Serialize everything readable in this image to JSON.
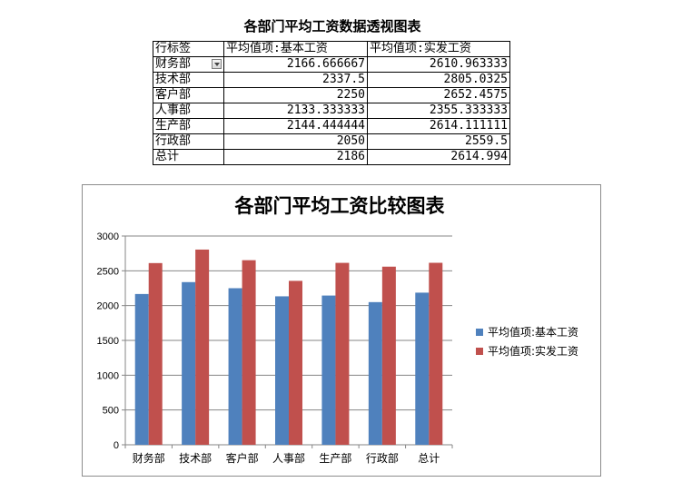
{
  "pivot": {
    "title": "各部门平均工资数据透视图表",
    "headers": [
      "行标签",
      "平均值项:基本工资",
      "平均值项:实发工资"
    ],
    "rows": [
      [
        "财务部",
        "2166.666667",
        "2610.963333"
      ],
      [
        "技术部",
        "2337.5",
        "2805.0325"
      ],
      [
        "客户部",
        "2250",
        "2652.4575"
      ],
      [
        "人事部",
        "2133.333333",
        "2355.333333"
      ],
      [
        "生产部",
        "2144.444444",
        "2614.111111"
      ],
      [
        "行政部",
        "2050",
        "2559.5"
      ],
      [
        "总计",
        "2186",
        "2614.994"
      ]
    ]
  },
  "chart_data": {
    "type": "bar",
    "title": "各部门平均工资比较图表",
    "categories": [
      "财务部",
      "技术部",
      "客户部",
      "人事部",
      "生产部",
      "行政部",
      "总计"
    ],
    "series": [
      {
        "name": "平均值项:基本工资",
        "color": "#4f81bd",
        "values": [
          2166.666667,
          2337.5,
          2250,
          2133.333333,
          2144.444444,
          2050,
          2186
        ]
      },
      {
        "name": "平均值项:实发工资",
        "color": "#c0504d",
        "values": [
          2610.963333,
          2805.0325,
          2652.4575,
          2355.333333,
          2614.111111,
          2559.5,
          2614.994
        ]
      }
    ],
    "ylim": [
      0,
      3000
    ],
    "yticks": [
      0,
      500,
      1000,
      1500,
      2000,
      2500,
      3000
    ],
    "grid": true,
    "legend": "right"
  }
}
